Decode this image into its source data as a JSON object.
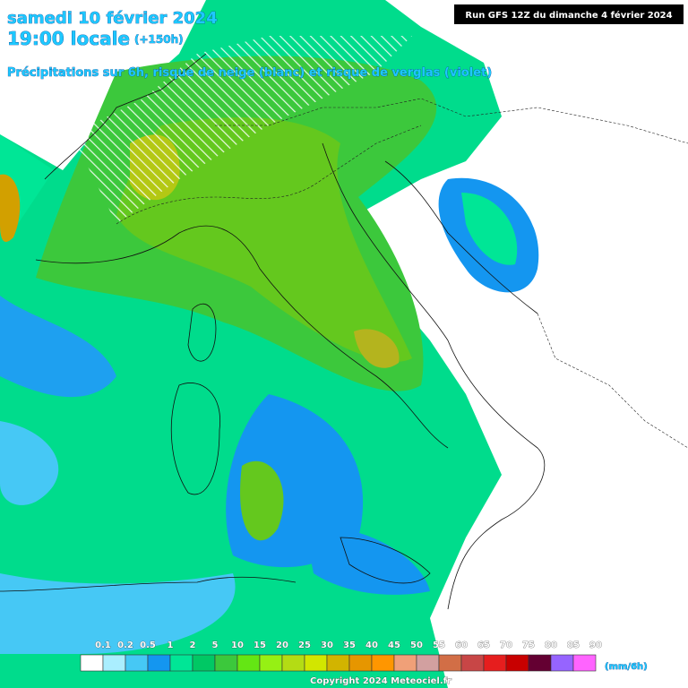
{
  "header": {
    "date": "samedi 10 février 2024",
    "time": "19:00 locale",
    "lead": "(+150h)",
    "subtitle": "Précipitations sur 6h, risque de neige (blanc) et risque de verglas (violet)",
    "run": "Run GFS 12Z du dimanche 4 février 2024"
  },
  "legend": {
    "values": [
      0.1,
      0.2,
      0.5,
      1,
      2,
      5,
      10,
      15,
      20,
      25,
      30,
      35,
      40,
      45,
      50,
      55,
      60,
      65,
      70,
      75,
      80,
      85,
      90
    ],
    "colors": [
      "#ffffff",
      "#aaeeff",
      "#46c8f5",
      "#1496f0",
      "#00e696",
      "#00c864",
      "#3cc83c",
      "#64e614",
      "#96f014",
      "#b4dc14",
      "#d2e600",
      "#d2b400",
      "#e69600",
      "#ff9600",
      "#f0a078",
      "#d2a0a0",
      "#d26e46",
      "#c84646",
      "#e61e1e",
      "#c80000",
      "#640032",
      "#9664ff",
      "#ff64ff"
    ],
    "unit": "(mm/6h)"
  },
  "footer": {
    "copyright": "Copyright 2024 Meteociel.fr"
  }
}
